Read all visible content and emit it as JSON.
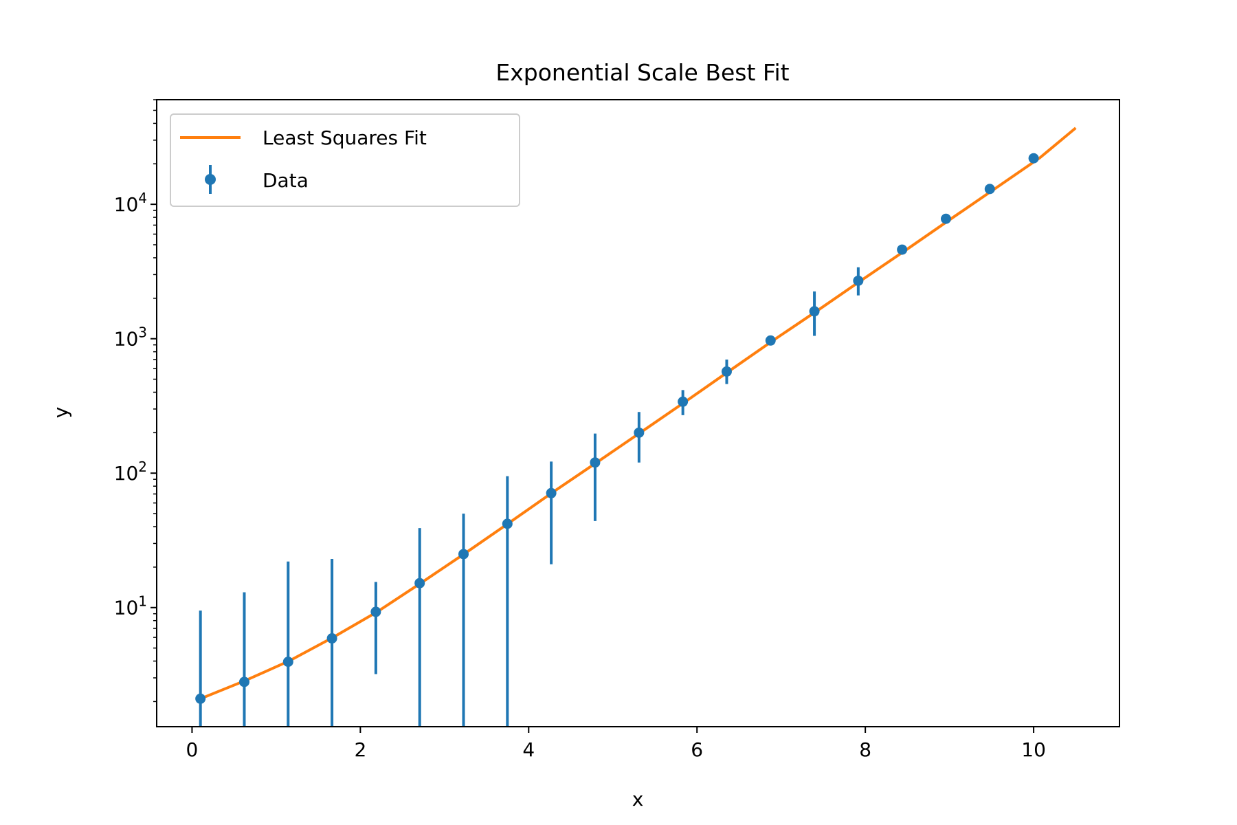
{
  "chart_data": {
    "type": "scatter",
    "title": "Exponential Scale Best Fit",
    "xlabel": "x",
    "ylabel": "y",
    "xscale": "linear",
    "yscale": "log",
    "xlim": [
      -0.42,
      11.02
    ],
    "ylim": [
      1.3,
      60000
    ],
    "grid": false,
    "legend_position": "top-left",
    "x_ticks": [
      {
        "value": 0,
        "label": "0"
      },
      {
        "value": 2,
        "label": "2"
      },
      {
        "value": 4,
        "label": "4"
      },
      {
        "value": 6,
        "label": "6"
      },
      {
        "value": 8,
        "label": "8"
      },
      {
        "value": 10,
        "label": "10"
      }
    ],
    "y_ticks": [
      {
        "value": 10,
        "base": "10",
        "exp": "1"
      },
      {
        "value": 100,
        "base": "10",
        "exp": "2"
      },
      {
        "value": 1000,
        "base": "10",
        "exp": "3"
      },
      {
        "value": 10000,
        "base": "10",
        "exp": "4"
      }
    ],
    "series": [
      {
        "name": "Least Squares Fit",
        "kind": "line",
        "color": "#ff7f0e",
        "x": [
          0.1,
          0.625,
          1.15,
          1.675,
          2.2,
          2.725,
          3.25,
          3.775,
          4.3,
          4.825,
          5.35,
          5.875,
          6.4,
          6.925,
          7.45,
          7.975,
          8.5,
          9.025,
          9.55,
          10.075,
          10.5
        ],
        "y": [
          2.1,
          2.85,
          4.0,
          6.0,
          9.3,
          15.3,
          25.5,
          43,
          73,
          122,
          205,
          345,
          585,
          990,
          1650,
          2780,
          4650,
          7850,
          13200,
          22200,
          37000
        ]
      },
      {
        "name": "Data",
        "kind": "errorbar",
        "color": "#1f77b4",
        "x": [
          0.1,
          0.621,
          1.142,
          1.663,
          2.184,
          2.705,
          3.226,
          3.747,
          4.268,
          4.789,
          5.311,
          5.832,
          6.353,
          6.874,
          7.395,
          7.916,
          8.437,
          8.958,
          9.479,
          10.0
        ],
        "y": [
          2.1,
          2.8,
          3.95,
          5.9,
          9.3,
          15.2,
          25,
          42,
          71,
          120,
          200,
          340,
          570,
          970,
          1600,
          2700,
          4600,
          7800,
          13000,
          22000
        ],
        "y_low": [
          1.3,
          1.3,
          1.3,
          1.3,
          3.2,
          1.3,
          1.3,
          1.3,
          21,
          44,
          120,
          270,
          460,
          970,
          1050,
          2100,
          4600,
          7800,
          13000,
          22000
        ],
        "y_high": [
          9.5,
          13,
          22,
          23,
          15.5,
          39,
          50,
          95,
          122,
          197,
          285,
          415,
          700,
          970,
          2250,
          3400,
          4600,
          7800,
          13000,
          22000
        ]
      }
    ]
  }
}
